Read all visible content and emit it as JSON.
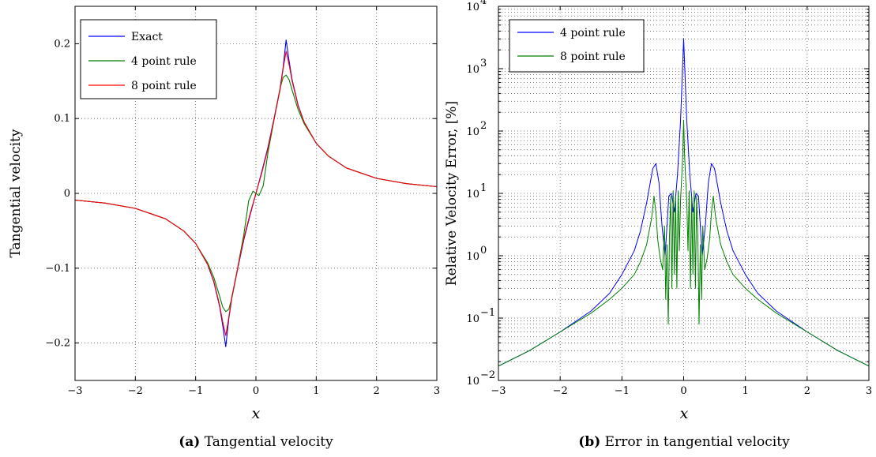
{
  "colors": {
    "blue": "#0000ff",
    "green": "#008000",
    "red": "#ff0000"
  },
  "chart_data": [
    {
      "type": "line",
      "title": "",
      "xlabel": "x",
      "ylabel": "Tangential velocity",
      "caption_tag": "(a)",
      "caption_text": " Tangential velocity",
      "xlim": [
        -3,
        3
      ],
      "ylim": [
        -0.25,
        0.25
      ],
      "xticks": [
        -3,
        -2,
        -1,
        0,
        1,
        2,
        3
      ],
      "xtick_labels": [
        "−3",
        "−2",
        "−1",
        "0",
        "1",
        "2",
        "3"
      ],
      "yticks": [
        -0.2,
        -0.1,
        0,
        0.1,
        0.2
      ],
      "ytick_labels": [
        "−0.2",
        "−0.1",
        "0",
        "0.1",
        "0.2"
      ],
      "grid": true,
      "legend_position": "top-left",
      "series": [
        {
          "name": "Exact",
          "color": "#0000ff",
          "x": [
            -3,
            -2.5,
            -2,
            -1.5,
            -1.2,
            -1,
            -0.8,
            -0.7,
            -0.6,
            -0.55,
            -0.5,
            -0.45,
            -0.4,
            -0.3,
            -0.2,
            -0.1,
            0,
            0.1,
            0.2,
            0.3,
            0.4,
            0.45,
            0.5,
            0.55,
            0.6,
            0.7,
            0.8,
            1,
            1.2,
            1.5,
            2,
            2.5,
            3
          ],
          "y": [
            -0.009,
            -0.013,
            -0.02,
            -0.034,
            -0.05,
            -0.067,
            -0.095,
            -0.118,
            -0.152,
            -0.177,
            -0.205,
            -0.168,
            -0.14,
            -0.1,
            -0.062,
            -0.03,
            0,
            0.03,
            0.062,
            0.1,
            0.14,
            0.168,
            0.205,
            0.177,
            0.152,
            0.118,
            0.095,
            0.067,
            0.05,
            0.034,
            0.02,
            0.013,
            0.009
          ]
        },
        {
          "name": "4 point rule",
          "color": "#008000",
          "x": [
            -3,
            -2.5,
            -2,
            -1.5,
            -1.2,
            -1,
            -0.8,
            -0.7,
            -0.6,
            -0.55,
            -0.5,
            -0.45,
            -0.4,
            -0.3,
            -0.2,
            -0.12,
            -0.05,
            0,
            0.05,
            0.12,
            0.2,
            0.3,
            0.4,
            0.45,
            0.5,
            0.55,
            0.6,
            0.7,
            0.8,
            1,
            1.2,
            1.5,
            2,
            2.5,
            3
          ],
          "y": [
            -0.009,
            -0.013,
            -0.02,
            -0.034,
            -0.05,
            -0.067,
            -0.093,
            -0.112,
            -0.138,
            -0.152,
            -0.158,
            -0.155,
            -0.14,
            -0.098,
            -0.055,
            -0.01,
            0.003,
            0,
            -0.003,
            0.01,
            0.055,
            0.098,
            0.14,
            0.155,
            0.158,
            0.152,
            0.138,
            0.112,
            0.093,
            0.067,
            0.05,
            0.034,
            0.02,
            0.013,
            0.009
          ]
        },
        {
          "name": "8 point rule",
          "color": "#ff0000",
          "x": [
            -3,
            -2.5,
            -2,
            -1.5,
            -1.2,
            -1,
            -0.8,
            -0.7,
            -0.6,
            -0.55,
            -0.5,
            -0.45,
            -0.4,
            -0.3,
            -0.2,
            -0.1,
            0,
            0.1,
            0.2,
            0.3,
            0.4,
            0.45,
            0.5,
            0.55,
            0.6,
            0.7,
            0.8,
            1,
            1.2,
            1.5,
            2,
            2.5,
            3
          ],
          "y": [
            -0.009,
            -0.013,
            -0.02,
            -0.034,
            -0.05,
            -0.067,
            -0.095,
            -0.117,
            -0.15,
            -0.172,
            -0.19,
            -0.166,
            -0.138,
            -0.099,
            -0.06,
            -0.028,
            0,
            0.028,
            0.06,
            0.099,
            0.138,
            0.166,
            0.19,
            0.172,
            0.15,
            0.117,
            0.095,
            0.067,
            0.05,
            0.034,
            0.02,
            0.013,
            0.009
          ]
        }
      ]
    },
    {
      "type": "line",
      "title": "",
      "xlabel": "x",
      "ylabel": "Relative Velocity Error, [%]",
      "caption_tag": "(b)",
      "caption_text": " Error in tangential velocity",
      "xlim": [
        -3,
        3
      ],
      "ylim": [
        0.01,
        10000
      ],
      "yscale": "log",
      "xticks": [
        -3,
        -2,
        -1,
        0,
        1,
        2,
        3
      ],
      "xtick_labels": [
        "−3",
        "−2",
        "−1",
        "0",
        "1",
        "2",
        "3"
      ],
      "ytick_exponents": [
        "−2",
        "−1",
        "0",
        "1",
        "2",
        "3",
        "4"
      ],
      "ytick_base": "10",
      "grid": true,
      "legend_position": "top-left",
      "series": [
        {
          "name": "4 point rule",
          "color": "#0000ff",
          "x": [
            -3,
            -2.5,
            -2,
            -1.5,
            -1.2,
            -1,
            -0.8,
            -0.7,
            -0.6,
            -0.5,
            -0.45,
            -0.4,
            -0.35,
            -0.3,
            -0.27,
            -0.24,
            -0.2,
            -0.15,
            -0.1,
            -0.05,
            0,
            0.05,
            0.1,
            0.15,
            0.2,
            0.24,
            0.27,
            0.3,
            0.35,
            0.4,
            0.45,
            0.5,
            0.6,
            0.7,
            0.8,
            1,
            1.2,
            1.5,
            2,
            2.5,
            3
          ],
          "y": [
            0.017,
            0.03,
            0.06,
            0.13,
            0.25,
            0.5,
            1.2,
            2.5,
            7,
            25,
            30,
            15,
            3,
            1,
            3,
            9,
            10,
            5,
            20,
            150,
            3000,
            150,
            20,
            5,
            10,
            9,
            3,
            1,
            3,
            15,
            30,
            25,
            7,
            2.5,
            1.2,
            0.5,
            0.25,
            0.13,
            0.06,
            0.03,
            0.017
          ]
        },
        {
          "name": "8 point rule",
          "color": "#008000",
          "x": [
            -3,
            -2.5,
            -2,
            -1.5,
            -1.2,
            -1,
            -0.8,
            -0.7,
            -0.6,
            -0.52,
            -0.48,
            -0.45,
            -0.42,
            -0.38,
            -0.34,
            -0.31,
            -0.29,
            -0.27,
            -0.25,
            -0.23,
            -0.21,
            -0.19,
            -0.17,
            -0.15,
            -0.13,
            -0.11,
            -0.09,
            -0.07,
            -0.05,
            -0.03,
            -0.015,
            0,
            0.015,
            0.03,
            0.05,
            0.07,
            0.09,
            0.11,
            0.13,
            0.15,
            0.17,
            0.19,
            0.21,
            0.23,
            0.25,
            0.27,
            0.29,
            0.31,
            0.34,
            0.38,
            0.42,
            0.45,
            0.48,
            0.52,
            0.6,
            0.7,
            0.8,
            1,
            1.2,
            1.5,
            2,
            2.5,
            3
          ],
          "y": [
            0.017,
            0.03,
            0.06,
            0.12,
            0.2,
            0.3,
            0.5,
            0.8,
            1.5,
            4,
            9,
            5,
            1.8,
            0.9,
            0.6,
            3,
            0.2,
            1.5,
            0.08,
            2,
            9,
            0.3,
            11,
            0.5,
            9,
            0.3,
            11,
            1.2,
            8,
            20,
            40,
            150,
            40,
            20,
            8,
            1.2,
            11,
            0.3,
            9,
            0.5,
            11,
            0.3,
            9,
            2,
            0.08,
            1.5,
            0.2,
            3,
            0.6,
            0.9,
            1.8,
            5,
            9,
            4,
            1.5,
            0.8,
            0.5,
            0.3,
            0.2,
            0.12,
            0.06,
            0.03,
            0.017
          ]
        }
      ]
    }
  ]
}
